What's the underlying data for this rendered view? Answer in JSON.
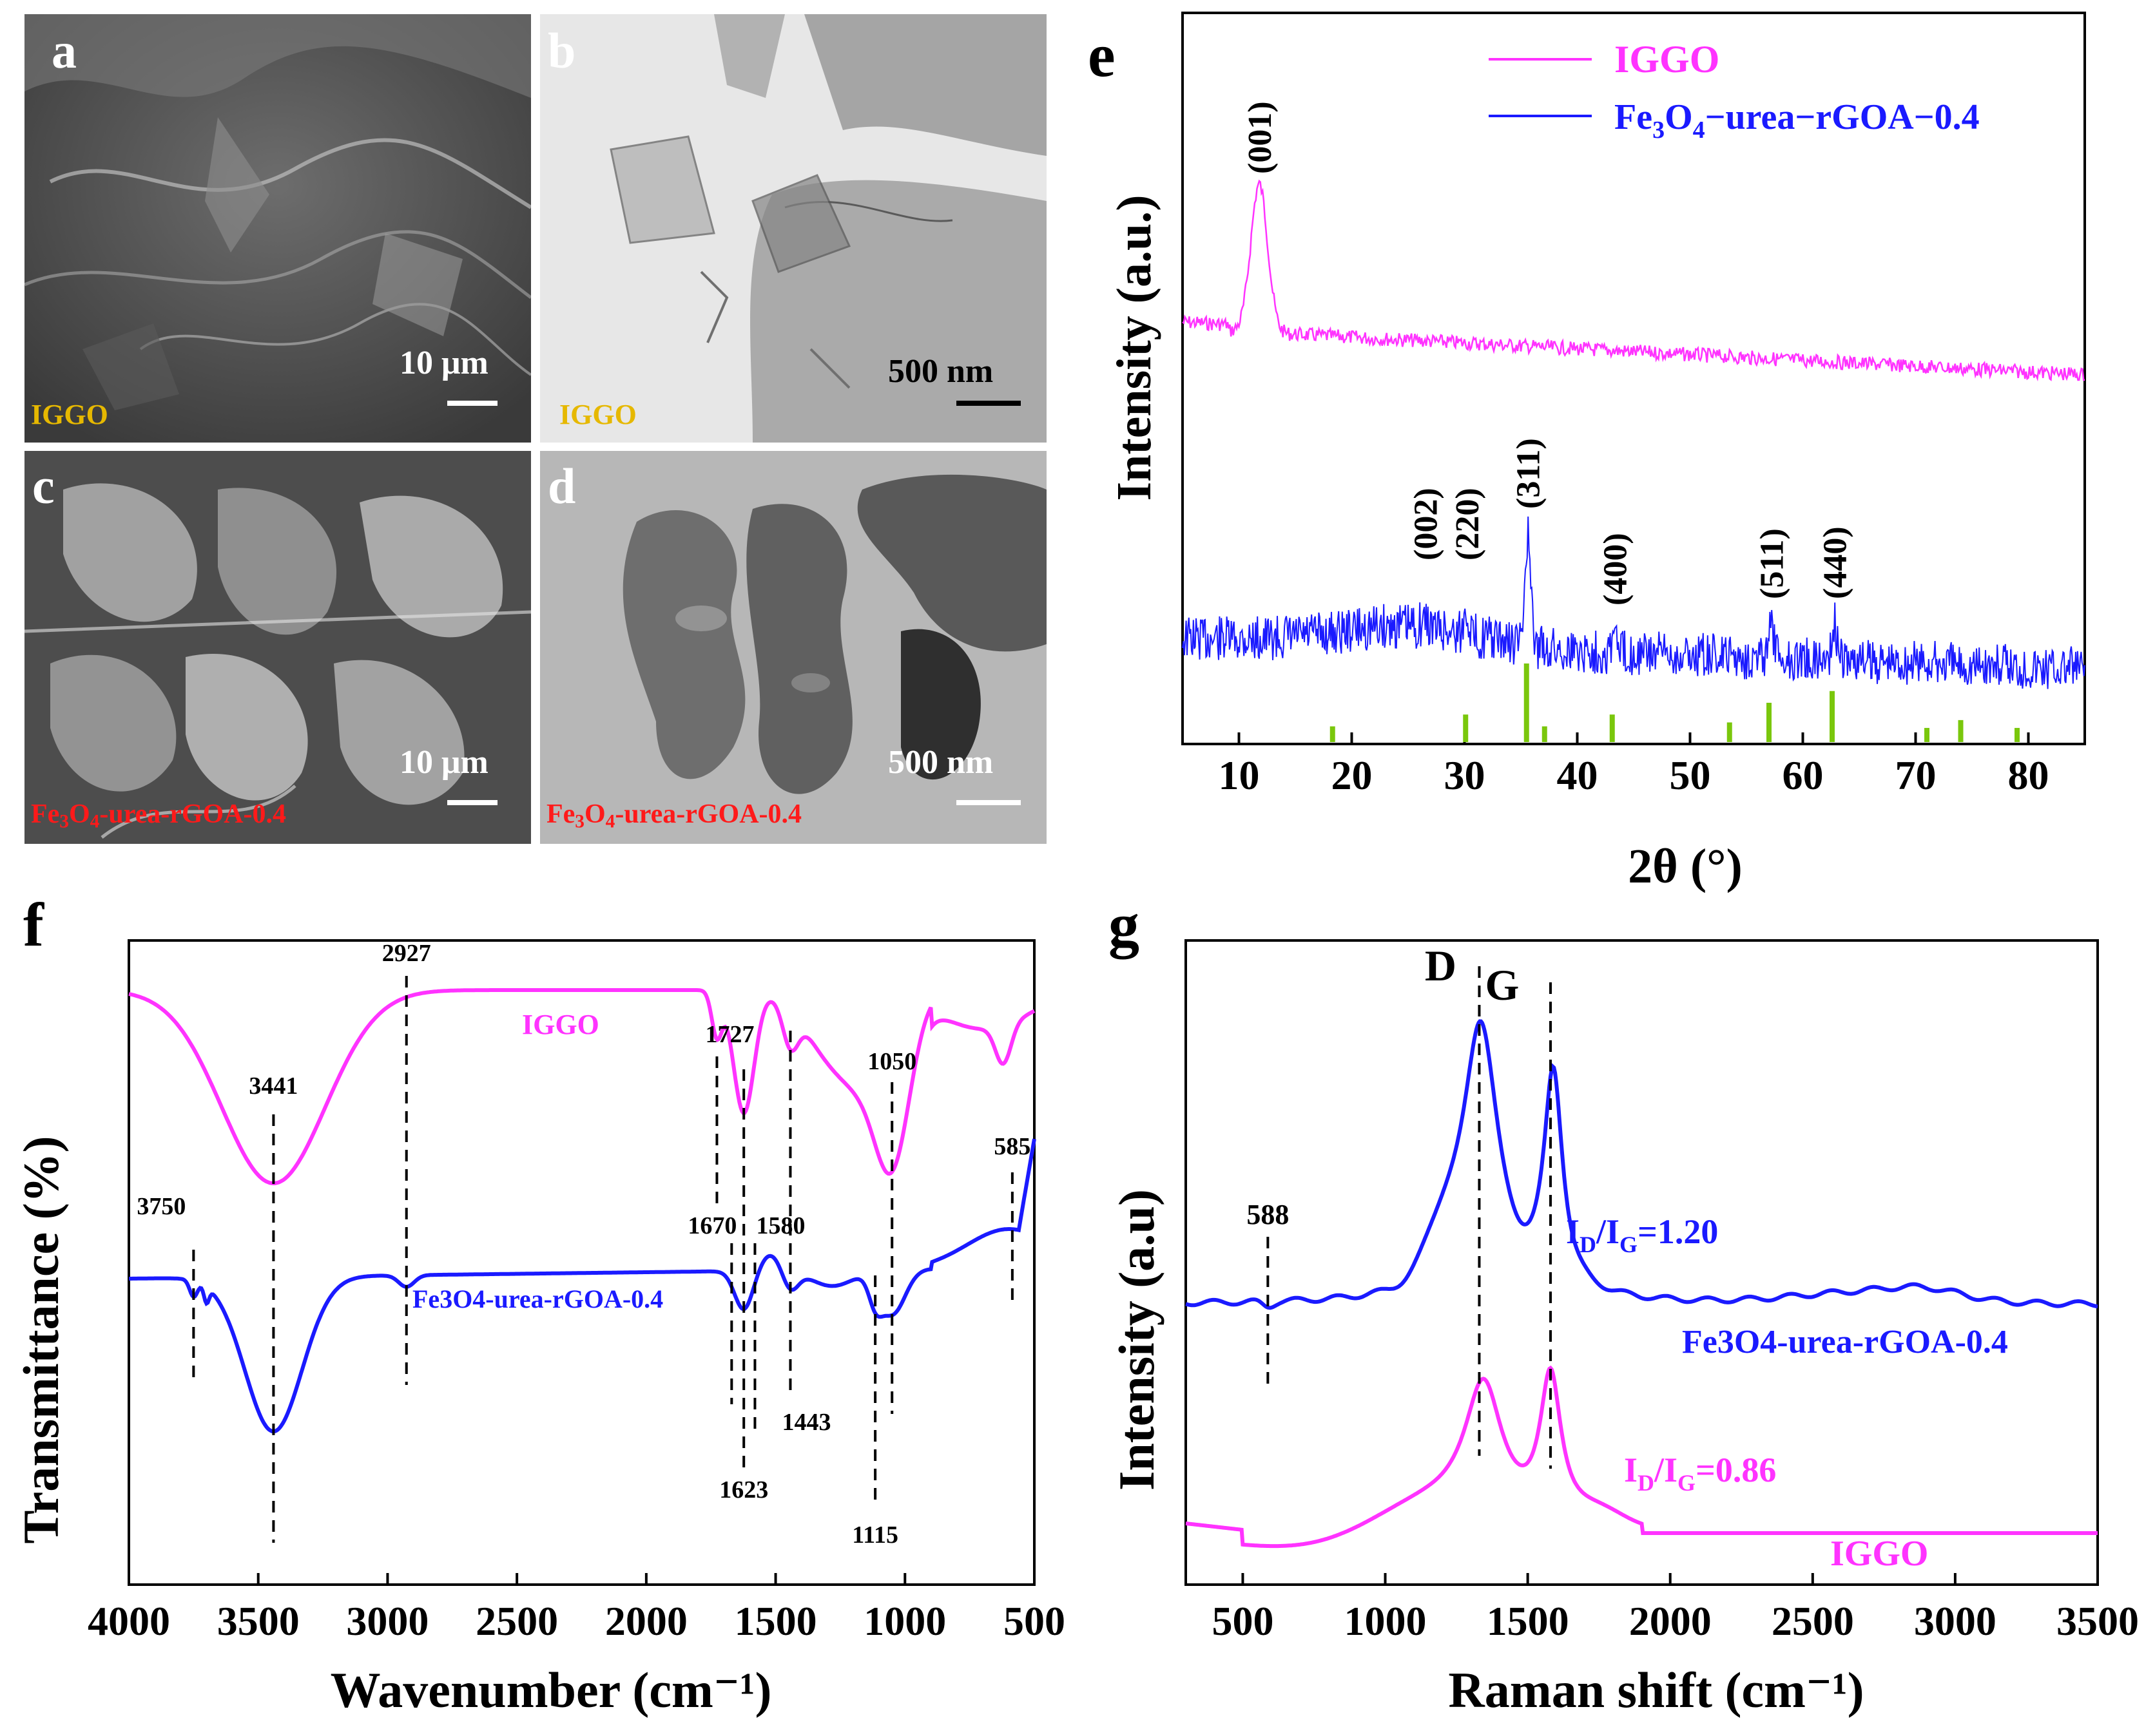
{
  "panels": {
    "a": {
      "letter": "a",
      "scale": "10 μm",
      "sample": "IGGO",
      "sample_color": "#e6b800"
    },
    "b": {
      "letter": "b",
      "scale": "500 nm",
      "sample": "IGGO",
      "sample_color": "#e6b800"
    },
    "c": {
      "letter": "c",
      "scale": "10 μm",
      "sample": "Fe3O4-urea-rGOA-0.4",
      "sample_color": "#ff1a1a"
    },
    "d": {
      "letter": "d",
      "scale": "500 nm",
      "sample": "Fe3O4-urea-rGOA-0.4",
      "sample_color": "#ff1a1a"
    },
    "e": {
      "letter": "e"
    },
    "f": {
      "letter": "f"
    },
    "g": {
      "letter": "g"
    }
  },
  "colors": {
    "igg": "#ff33ff",
    "fe": "#1a1aff",
    "ref": "#7ac70c"
  },
  "chart_data": [
    {
      "id": "e",
      "type": "line",
      "title": "",
      "xlabel": "2θ (°)",
      "ylabel": "Intensity (a.u.)",
      "xlim": [
        5,
        85
      ],
      "xticks": [
        10,
        20,
        30,
        40,
        50,
        60,
        70,
        80
      ],
      "legend": [
        "IGGO",
        "Fe3O4−urea−rGOA−0.4"
      ],
      "legend_position": "top-right",
      "series": [
        {
          "name": "IGGO",
          "peaks": [
            {
              "x": 11.8,
              "label": "(001)"
            }
          ]
        },
        {
          "name": "Fe3O4−urea−rGOA−0.4",
          "peaks": [
            {
              "x": 26.5,
              "label": "(002)"
            },
            {
              "x": 30.2,
              "label": "(220)"
            },
            {
              "x": 35.6,
              "label": "(311)"
            },
            {
              "x": 43.3,
              "label": "(400)"
            },
            {
              "x": 57.2,
              "label": "(511)"
            },
            {
              "x": 62.8,
              "label": "(440)"
            }
          ]
        }
      ],
      "reference_lines": [
        {
          "x": 18.3,
          "rel": 0.2
        },
        {
          "x": 30.1,
          "rel": 0.35
        },
        {
          "x": 35.5,
          "rel": 1.0
        },
        {
          "x": 37.1,
          "rel": 0.2
        },
        {
          "x": 43.1,
          "rel": 0.35
        },
        {
          "x": 53.5,
          "rel": 0.25
        },
        {
          "x": 57.0,
          "rel": 0.5
        },
        {
          "x": 62.6,
          "rel": 0.65
        },
        {
          "x": 71.0,
          "rel": 0.18
        },
        {
          "x": 74.0,
          "rel": 0.28
        },
        {
          "x": 79.0,
          "rel": 0.18
        }
      ]
    },
    {
      "id": "f",
      "type": "line",
      "title": "",
      "xlabel": "Wavenumber (cm⁻¹)",
      "ylabel": "Transmittance (%)",
      "xlim": [
        4000,
        500
      ],
      "xticks": [
        4000,
        3500,
        3000,
        2500,
        2000,
        1500,
        1000,
        500
      ],
      "series": [
        {
          "name": "IGGO",
          "label": "IGGO"
        },
        {
          "name": "Fe3O4-urea-rGOA-0.4",
          "label": "Fe3O4-urea-rGOA-0.4"
        }
      ],
      "annotations": [
        {
          "x": 3750,
          "label": "3750"
        },
        {
          "x": 3441,
          "label": "3441"
        },
        {
          "x": 2927,
          "label": "2927"
        },
        {
          "x": 1727,
          "label": "1727"
        },
        {
          "x": 1670,
          "label": "1670"
        },
        {
          "x": 1623,
          "label": "1623"
        },
        {
          "x": 1580,
          "label": "1580"
        },
        {
          "x": 1443,
          "label": "1443"
        },
        {
          "x": 1115,
          "label": "1115"
        },
        {
          "x": 1050,
          "label": "1050"
        },
        {
          "x": 585,
          "label": "585"
        }
      ]
    },
    {
      "id": "g",
      "type": "line",
      "title": "",
      "xlabel": "Raman shift (cm⁻¹)",
      "ylabel": "Intensity (a.u)",
      "xlim": [
        300,
        3500
      ],
      "xticks": [
        500,
        1000,
        1500,
        2000,
        2500,
        3000,
        3500
      ],
      "series": [
        {
          "name": "Fe3O4-urea-rGOA-0.4",
          "ratio": "ID/IG=1.20",
          "D": 1335,
          "G": 1585
        },
        {
          "name": "IGGO",
          "ratio": "ID/IG=0.86",
          "D": 1345,
          "G": 1580
        }
      ],
      "annotations": [
        {
          "x": 1330,
          "label": "D"
        },
        {
          "x": 1580,
          "label": "G"
        },
        {
          "x": 588,
          "label": "588"
        }
      ]
    }
  ],
  "text": {
    "e_legend_igg": "IGGO",
    "e_legend_fe_a": "Fe",
    "e_legend_fe_b": "O",
    "e_legend_fe_c": "−urea−rGOA−0.4",
    "e_sub3": "3",
    "e_sub4": "4",
    "f_igg_label": "IGGO",
    "f_fe_label": "Fe3O4-urea-rGOA-0.4",
    "g_fe_label": "Fe3O4-urea-rGOA-0.4",
    "g_igg_label": "IGGO",
    "g_fe_ratio_I": "I",
    "g_ratio_D": "D",
    "g_ratio_slash": "/I",
    "g_ratio_G": "G",
    "g_fe_ratio_val": "=1.20",
    "g_igg_ratio_val": "=0.86"
  }
}
